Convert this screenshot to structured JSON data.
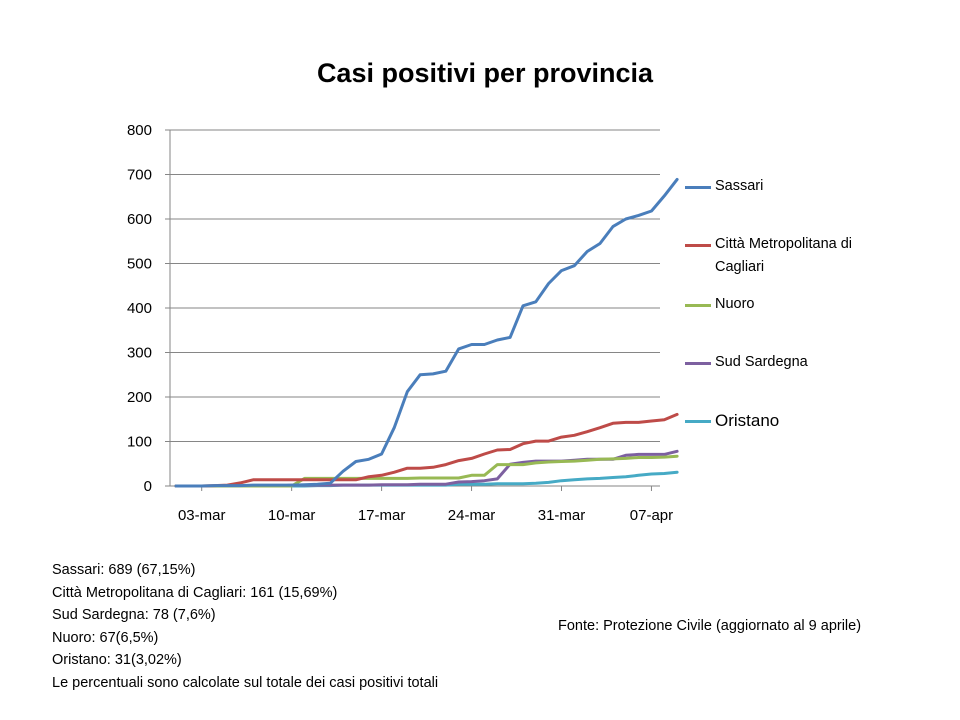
{
  "chart_data": {
    "type": "line",
    "title": "Casi positivi per provincia",
    "xlabel": "",
    "ylabel": "",
    "ylim": [
      0,
      800
    ],
    "yticks": [
      "0",
      "100",
      "200",
      "300",
      "400",
      "500",
      "600",
      "700",
      "800"
    ],
    "xtick_labels": [
      "03-mar",
      "10-mar",
      "17-mar",
      "24-mar",
      "31-mar",
      "07-apr"
    ],
    "x": [
      "01-mar",
      "02-mar",
      "03-mar",
      "04-mar",
      "05-mar",
      "06-mar",
      "07-mar",
      "08-mar",
      "09-mar",
      "10-mar",
      "11-mar",
      "12-mar",
      "13-mar",
      "14-mar",
      "15-mar",
      "16-mar",
      "17-mar",
      "18-mar",
      "19-mar",
      "20-mar",
      "21-mar",
      "22-mar",
      "23-mar",
      "24-mar",
      "25-mar",
      "26-mar",
      "27-mar",
      "28-mar",
      "29-mar",
      "30-mar",
      "31-mar",
      "01-apr",
      "02-apr",
      "03-apr",
      "04-apr",
      "05-apr",
      "06-apr",
      "07-apr",
      "08-apr",
      "09-apr"
    ],
    "grid": "horizontal",
    "legend_position": "right",
    "series": [
      {
        "name": "Sassari",
        "color": "#4a7ebb",
        "values": [
          0,
          0,
          0,
          1,
          1,
          1,
          2,
          2,
          2,
          2,
          3,
          4,
          6,
          33,
          55,
          60,
          72,
          132,
          212,
          250,
          252,
          258,
          308,
          318,
          318,
          328,
          334,
          405,
          414,
          455,
          484,
          495,
          527,
          545,
          583,
          600,
          608,
          618,
          652,
          689
        ]
      },
      {
        "name": "Città Metropolitana di Cagliari",
        "color": "#be4b48",
        "values": [
          0,
          0,
          0,
          1,
          2,
          7,
          14,
          14,
          14,
          14,
          14,
          14,
          14,
          14,
          14,
          21,
          24,
          31,
          40,
          40,
          42,
          48,
          57,
          62,
          72,
          81,
          82,
          95,
          101,
          101,
          110,
          114,
          122,
          131,
          141,
          143,
          143,
          146,
          149,
          161
        ]
      },
      {
        "name": "Nuoro",
        "color": "#98b954",
        "values": [
          0,
          0,
          0,
          0,
          0,
          0,
          0,
          0,
          0,
          0,
          17,
          17,
          17,
          17,
          17,
          17,
          17,
          17,
          17,
          18,
          18,
          18,
          18,
          24,
          24,
          48,
          48,
          48,
          52,
          54,
          55,
          56,
          58,
          60,
          61,
          62,
          64,
          64,
          65,
          67
        ]
      },
      {
        "name": "Sud Sardegna",
        "color": "#7d60a0",
        "values": [
          0,
          0,
          0,
          0,
          0,
          0,
          0,
          0,
          0,
          2,
          2,
          2,
          2,
          2,
          2,
          2,
          3,
          3,
          3,
          4,
          4,
          4,
          9,
          10,
          12,
          16,
          49,
          53,
          56,
          56,
          56,
          58,
          60,
          60,
          60,
          69,
          71,
          71,
          71,
          78
        ]
      },
      {
        "name": "Oristano",
        "color": "#46aac5",
        "values": [
          0,
          0,
          0,
          0,
          0,
          0,
          0,
          0,
          0,
          0,
          0,
          1,
          1,
          2,
          2,
          2,
          2,
          2,
          2,
          2,
          2,
          2,
          4,
          4,
          4,
          5,
          5,
          5,
          6,
          8,
          12,
          14,
          16,
          17,
          19,
          21,
          24,
          27,
          28,
          31
        ]
      }
    ]
  },
  "notes": {
    "lines": [
      "Sassari: 689 (67,15%)",
      "Città Metropolitana di Cagliari: 161 (15,69%)",
      "Sud Sardegna: 78 (7,6%)",
      "Nuoro: 67(6,5%)",
      "Oristano: 31(3,02%)",
      "Le percentuali sono calcolate sul totale dei casi positivi totali"
    ]
  },
  "source": {
    "text": "Fonte: Protezione Civile (aggiornato al 9 aprile)"
  },
  "colors": {
    "gridline": "#868686",
    "axis": "#868686"
  }
}
